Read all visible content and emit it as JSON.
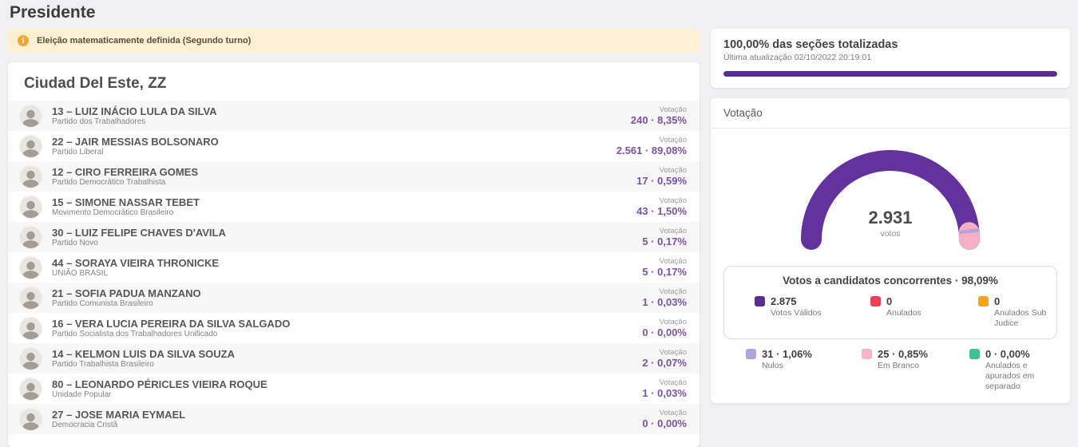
{
  "page_title": "Presidente",
  "banner": {
    "text": "Eleição matematicamente definida (Segundo turno)"
  },
  "municipality": {
    "title": "Ciudad Del Este, ZZ"
  },
  "list": {
    "vote_label": "Votação"
  },
  "candidates": [
    {
      "number": "13",
      "name": "LUIZ INÁCIO LULA DA SILVA",
      "party": "Partido dos Trabalhadores",
      "votes": "240",
      "percent": "8,35%"
    },
    {
      "number": "22",
      "name": "JAIR MESSIAS BOLSONARO",
      "party": "Partido Liberal",
      "votes": "2.561",
      "percent": "89,08%"
    },
    {
      "number": "12",
      "name": "CIRO FERREIRA GOMES",
      "party": "Partido Democrático Trabalhista",
      "votes": "17",
      "percent": "0,59%"
    },
    {
      "number": "15",
      "name": "SIMONE NASSAR TEBET",
      "party": "Movimento Democrático Brasileiro",
      "votes": "43",
      "percent": "1,50%"
    },
    {
      "number": "30",
      "name": "LUIZ FELIPE CHAVES D'AVILA",
      "party": "Partido Novo",
      "votes": "5",
      "percent": "0,17%"
    },
    {
      "number": "44",
      "name": "SORAYA VIEIRA THRONICKE",
      "party": "UNIÃO BRASIL",
      "votes": "5",
      "percent": "0,17%"
    },
    {
      "number": "21",
      "name": "SOFIA PADUA MANZANO",
      "party": "Partido Comunista Brasileiro",
      "votes": "1",
      "percent": "0,03%"
    },
    {
      "number": "16",
      "name": "VERA LUCIA PEREIRA DA SILVA SALGADO",
      "party": "Partido Socialista dos Trabalhadores Unificado",
      "votes": "0",
      "percent": "0,00%"
    },
    {
      "number": "14",
      "name": "KELMON LUIS DA SILVA SOUZA",
      "party": "Partido Trabalhista Brasileiro",
      "votes": "2",
      "percent": "0,07%"
    },
    {
      "number": "80",
      "name": "LEONARDO PÉRICLES VIEIRA ROQUE",
      "party": "Unidade Popular",
      "votes": "1",
      "percent": "0,03%"
    },
    {
      "number": "27",
      "name": "JOSE MARIA EYMAEL",
      "party": "Democracia Cristã",
      "votes": "0",
      "percent": "0,00%"
    }
  ],
  "totals": {
    "title": "100,00% das seções totalizadas",
    "updated": "Última atualização 02/10/2022 20:19:01",
    "progress_percent": 100,
    "bar_color": "#5b2d90"
  },
  "chart_data": {
    "type": "gauge",
    "title": "Votação",
    "center_value": "2.931",
    "center_label": "votos",
    "total_votes": 2931,
    "segments": [
      {
        "name": "Votos Válidos",
        "value": 2875,
        "fraction": 0.9809,
        "color": "#64329c"
      },
      {
        "name": "Nulos",
        "value": 31,
        "fraction": 0.0106,
        "color": "#b4a2d8"
      },
      {
        "name": "Em Branco",
        "value": 25,
        "fraction": 0.0085,
        "color": "#f3afc4"
      }
    ],
    "legend_box": {
      "title": "Votos a candidatos concorrentes · 98,09%",
      "items": [
        {
          "color": "#5b2d90",
          "value": "2.875",
          "label": "Votos Válidos"
        },
        {
          "color": "#f43f55",
          "value": "0",
          "label": "Anulados"
        },
        {
          "color": "#f8a41b",
          "value": "0",
          "label": "Anulados Sub Judice"
        }
      ]
    },
    "legend_bottom": {
      "items": [
        {
          "color": "#b4a2d8",
          "value": "31 · 1,06%",
          "label": "Nulos"
        },
        {
          "color": "#f6b3c6",
          "value": "25 · 0,85%",
          "label": "Em Branco"
        },
        {
          "color": "#3ec28f",
          "value": "0 · 0,00%",
          "label": "Anulados e apurados em separado"
        }
      ]
    }
  }
}
